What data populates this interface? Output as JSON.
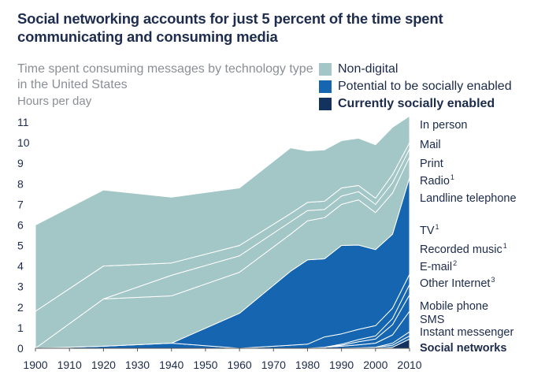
{
  "title": "Social networking accounts for just 5 percent of the time spent communicating and consuming media",
  "subtitle": "Time spent consuming messages by technology type in the United States",
  "ylabel": "Hours per day",
  "legend": [
    {
      "label": "Non-digital",
      "color": "#a3c6c6",
      "bold": false
    },
    {
      "label": "Potential to be socially enabled",
      "color": "#1565b0",
      "bold": false
    },
    {
      "label": "Currently socially enabled",
      "color": "#14325e",
      "bold": true
    }
  ],
  "chart_data": {
    "type": "area",
    "ylim": [
      0,
      11
    ],
    "xlim": [
      1900,
      2010
    ],
    "yticks": [
      0,
      1,
      2,
      3,
      4,
      5,
      6,
      7,
      8,
      9,
      10,
      11
    ],
    "xticks": [
      1900,
      1910,
      1920,
      1930,
      1940,
      1950,
      1960,
      1970,
      1980,
      1990,
      2000,
      2010
    ],
    "grid": false,
    "x": [
      1900,
      1920,
      1940,
      1960,
      1975,
      1980,
      1985,
      1990,
      1995,
      2000,
      2005,
      2010
    ],
    "series": [
      {
        "name": "Social networks",
        "group": "Currently socially enabled",
        "values": [
          0,
          0,
          0,
          0,
          0,
          0,
          0,
          0,
          0,
          0,
          0.05,
          0.45
        ]
      },
      {
        "name": "Instant messenger",
        "group": "Potential to be socially enabled",
        "values": [
          0,
          0,
          0,
          0,
          0,
          0,
          0,
          0,
          0.02,
          0.05,
          0.1,
          0.15
        ]
      },
      {
        "name": "SMS",
        "group": "Potential to be socially enabled",
        "values": [
          0,
          0,
          0,
          0,
          0,
          0,
          0,
          0,
          0,
          0,
          0.1,
          0.2
        ]
      },
      {
        "name": "Mobile phone",
        "group": "Potential to be socially enabled",
        "values": [
          0,
          0,
          0,
          0,
          0,
          0,
          0.05,
          0.1,
          0.15,
          0.2,
          0.4,
          1.0
        ]
      },
      {
        "name": "Other Internet",
        "group": "Potential to be socially enabled",
        "values": [
          0,
          0,
          0,
          0,
          0,
          0,
          0,
          0.05,
          0.15,
          0.2,
          0.5,
          0.8
        ]
      },
      {
        "name": "E-mail",
        "group": "Potential to be socially enabled",
        "values": [
          0,
          0,
          0,
          0,
          0,
          0,
          0,
          0.05,
          0.1,
          0.15,
          0.3,
          0.5
        ]
      },
      {
        "name": "Recorded music",
        "group": "Potential to be socially enabled",
        "values": [
          0,
          0.1,
          0.25,
          0,
          0.15,
          0.2,
          0.5,
          0.5,
          0.5,
          0.5,
          0.5,
          0.5
        ]
      },
      {
        "name": "TV",
        "group": "Potential to be socially enabled",
        "values": [
          0,
          0,
          0,
          1.7,
          3.6,
          4.1,
          3.8,
          4.3,
          4.1,
          3.7,
          3.6,
          4.7
        ]
      },
      {
        "name": "Landline telephone",
        "group": "Non-digital",
        "values": [
          0,
          2.3,
          2.3,
          2.0,
          1.8,
          1.9,
          2.0,
          2.0,
          2.2,
          1.8,
          2.0,
          1.0
        ]
      },
      {
        "name": "Radio",
        "group": "Non-digital",
        "values": [
          0,
          0,
          1.0,
          0.8,
          0.6,
          0.5,
          0.4,
          0.4,
          0.4,
          0.4,
          0.5,
          0.4
        ]
      },
      {
        "name": "Print",
        "group": "Non-digital",
        "values": [
          1.8,
          1.6,
          0.6,
          0.5,
          0.4,
          0.4,
          0.4,
          0.4,
          0.3,
          0.3,
          0.4,
          0.3
        ]
      },
      {
        "name": "Mail",
        "group": "Non-digital",
        "values": [
          0,
          0,
          0,
          0,
          0,
          0,
          0,
          0,
          0,
          0,
          0,
          0
        ]
      },
      {
        "name": "In person",
        "group": "Non-digital",
        "values": [
          4.2,
          3.7,
          3.2,
          2.8,
          3.2,
          2.5,
          2.5,
          2.3,
          2.3,
          2.6,
          2.3,
          1.3
        ]
      }
    ],
    "right_labels": [
      {
        "text": "In person",
        "sup": "",
        "bold": false
      },
      {
        "text": "Mail",
        "sup": "",
        "bold": false
      },
      {
        "text": "Print",
        "sup": "",
        "bold": false
      },
      {
        "text": "Radio",
        "sup": "1",
        "bold": false
      },
      {
        "text": "Landline telephone",
        "sup": "",
        "bold": false
      },
      {
        "text": "TV",
        "sup": "1",
        "bold": false
      },
      {
        "text": "Recorded music",
        "sup": "1",
        "bold": false
      },
      {
        "text": "E-mail",
        "sup": "2",
        "bold": false
      },
      {
        "text": "Other Internet",
        "sup": "3",
        "bold": false
      },
      {
        "text": "Mobile phone",
        "sup": "",
        "bold": false
      },
      {
        "text": "SMS",
        "sup": "",
        "bold": false
      },
      {
        "text": "Instant messenger",
        "sup": "",
        "bold": false
      },
      {
        "text": "Social networks",
        "sup": "",
        "bold": true
      }
    ]
  }
}
